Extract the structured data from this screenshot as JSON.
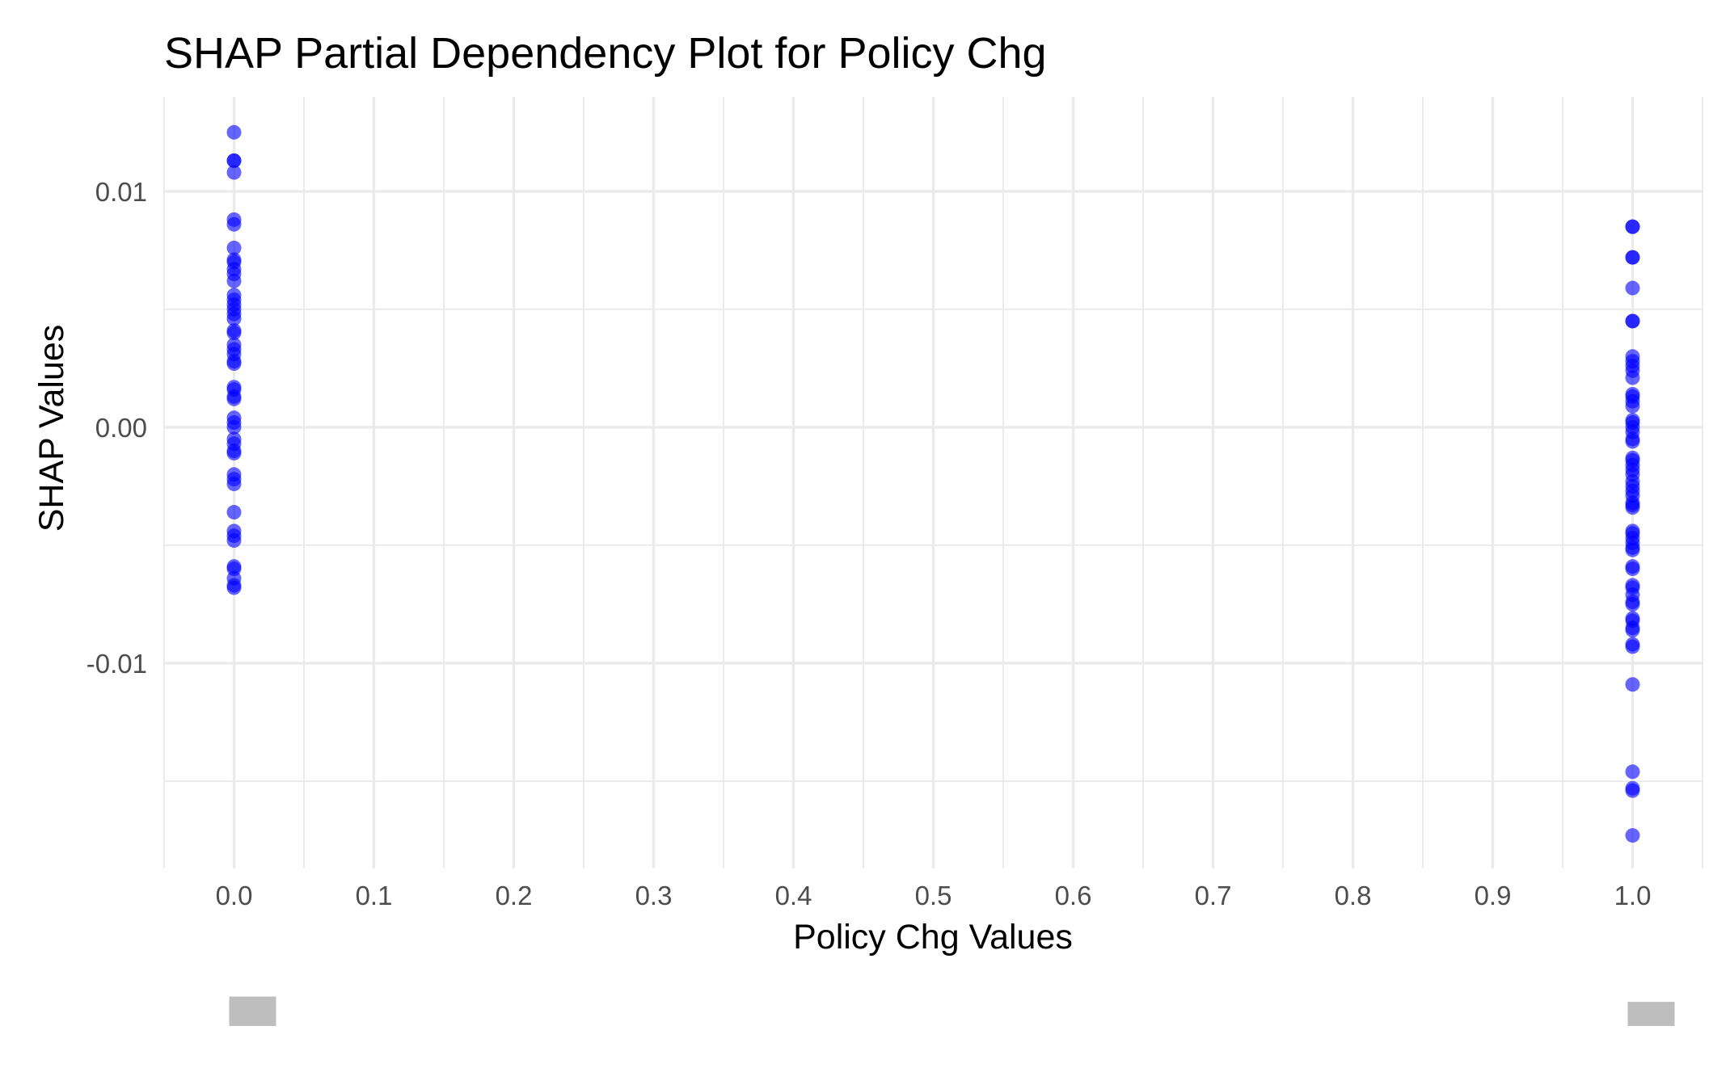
{
  "chart_data": {
    "type": "scatter",
    "title": "SHAP Partial Dependency Plot for Policy Chg",
    "xlabel": "Policy Chg Values",
    "ylabel": "SHAP Values",
    "xlim": [
      -0.05,
      1.05
    ],
    "ylim": [
      -0.0187,
      0.014
    ],
    "x_ticks": [
      0.0,
      0.1,
      0.2,
      0.3,
      0.4,
      0.5,
      0.6,
      0.7,
      0.8,
      0.9,
      1.0
    ],
    "x_tick_labels": [
      "0.0",
      "0.1",
      "0.2",
      "0.3",
      "0.4",
      "0.5",
      "0.6",
      "0.7",
      "0.8",
      "0.9",
      "1.0"
    ],
    "y_ticks": [
      -0.01,
      0.0,
      0.01
    ],
    "y_tick_labels": [
      "-0.01",
      "0.00",
      "0.01"
    ],
    "grid": true,
    "point_color": "#0000ff",
    "point_opacity": 0.6,
    "series": [
      {
        "x": [
          0,
          0,
          0,
          0,
          0,
          0,
          0,
          0,
          0,
          0,
          0,
          0,
          0,
          0,
          0,
          0,
          0,
          0,
          0,
          0,
          0,
          0,
          0,
          0,
          0,
          0,
          0,
          0,
          0,
          0,
          0,
          0,
          0,
          0,
          0,
          0,
          0,
          0,
          0,
          0,
          0,
          0,
          0,
          0,
          0,
          0,
          0,
          0
        ],
        "y": [
          0.0125,
          0.0113,
          0.0113,
          0.0108,
          0.0088,
          0.0086,
          0.0076,
          0.0071,
          0.007,
          0.0067,
          0.0065,
          0.0062,
          0.0056,
          0.0054,
          0.0052,
          0.005,
          0.0048,
          0.0046,
          0.0041,
          0.004,
          0.0035,
          0.0033,
          0.0031,
          0.0028,
          0.0027,
          0.0017,
          0.0016,
          0.0013,
          0.0012,
          0.0004,
          0.0002,
          0.0,
          -0.0005,
          -0.0007,
          -0.001,
          -0.0011,
          -0.002,
          -0.0022,
          -0.0024,
          -0.0036,
          -0.0044,
          -0.0046,
          -0.0048,
          -0.0059,
          -0.006,
          -0.0064,
          -0.0067,
          -0.0068
        ]
      },
      {
        "x": [
          1,
          1,
          1,
          1,
          1,
          1,
          1,
          1,
          1,
          1,
          1,
          1,
          1,
          1,
          1,
          1,
          1,
          1,
          1,
          1,
          1,
          1,
          1,
          1,
          1,
          1,
          1,
          1,
          1,
          1,
          1,
          1,
          1,
          1,
          1,
          1,
          1,
          1,
          1,
          1,
          1,
          1,
          1,
          1,
          1,
          1,
          1,
          1,
          1,
          1,
          1,
          1,
          1,
          1,
          1,
          1,
          1,
          1
        ],
        "y": [
          0.0085,
          0.0085,
          0.0072,
          0.0072,
          0.0059,
          0.0045,
          0.0045,
          0.003,
          0.0028,
          0.0026,
          0.0024,
          0.0021,
          0.0014,
          0.0013,
          0.0011,
          0.0009,
          0.0003,
          0.0002,
          0.0,
          -0.0002,
          -0.0005,
          -0.0006,
          -0.0013,
          -0.0014,
          -0.0016,
          -0.0018,
          -0.002,
          -0.0023,
          -0.0025,
          -0.0027,
          -0.0029,
          -0.0032,
          -0.0033,
          -0.0034,
          -0.0044,
          -0.0045,
          -0.0047,
          -0.0049,
          -0.0051,
          -0.0052,
          -0.0059,
          -0.006,
          -0.0067,
          -0.0068,
          -0.0071,
          -0.0074,
          -0.0075,
          -0.0081,
          -0.0082,
          -0.0085,
          -0.0086,
          -0.0092,
          -0.0093,
          -0.0109,
          -0.0146,
          -0.0153,
          -0.0154,
          -0.0173
        ]
      }
    ],
    "rug": [
      {
        "x": 0.0,
        "count": 48
      },
      {
        "x": 1.0,
        "count": 58
      }
    ],
    "rug_color": "#bebebe"
  }
}
